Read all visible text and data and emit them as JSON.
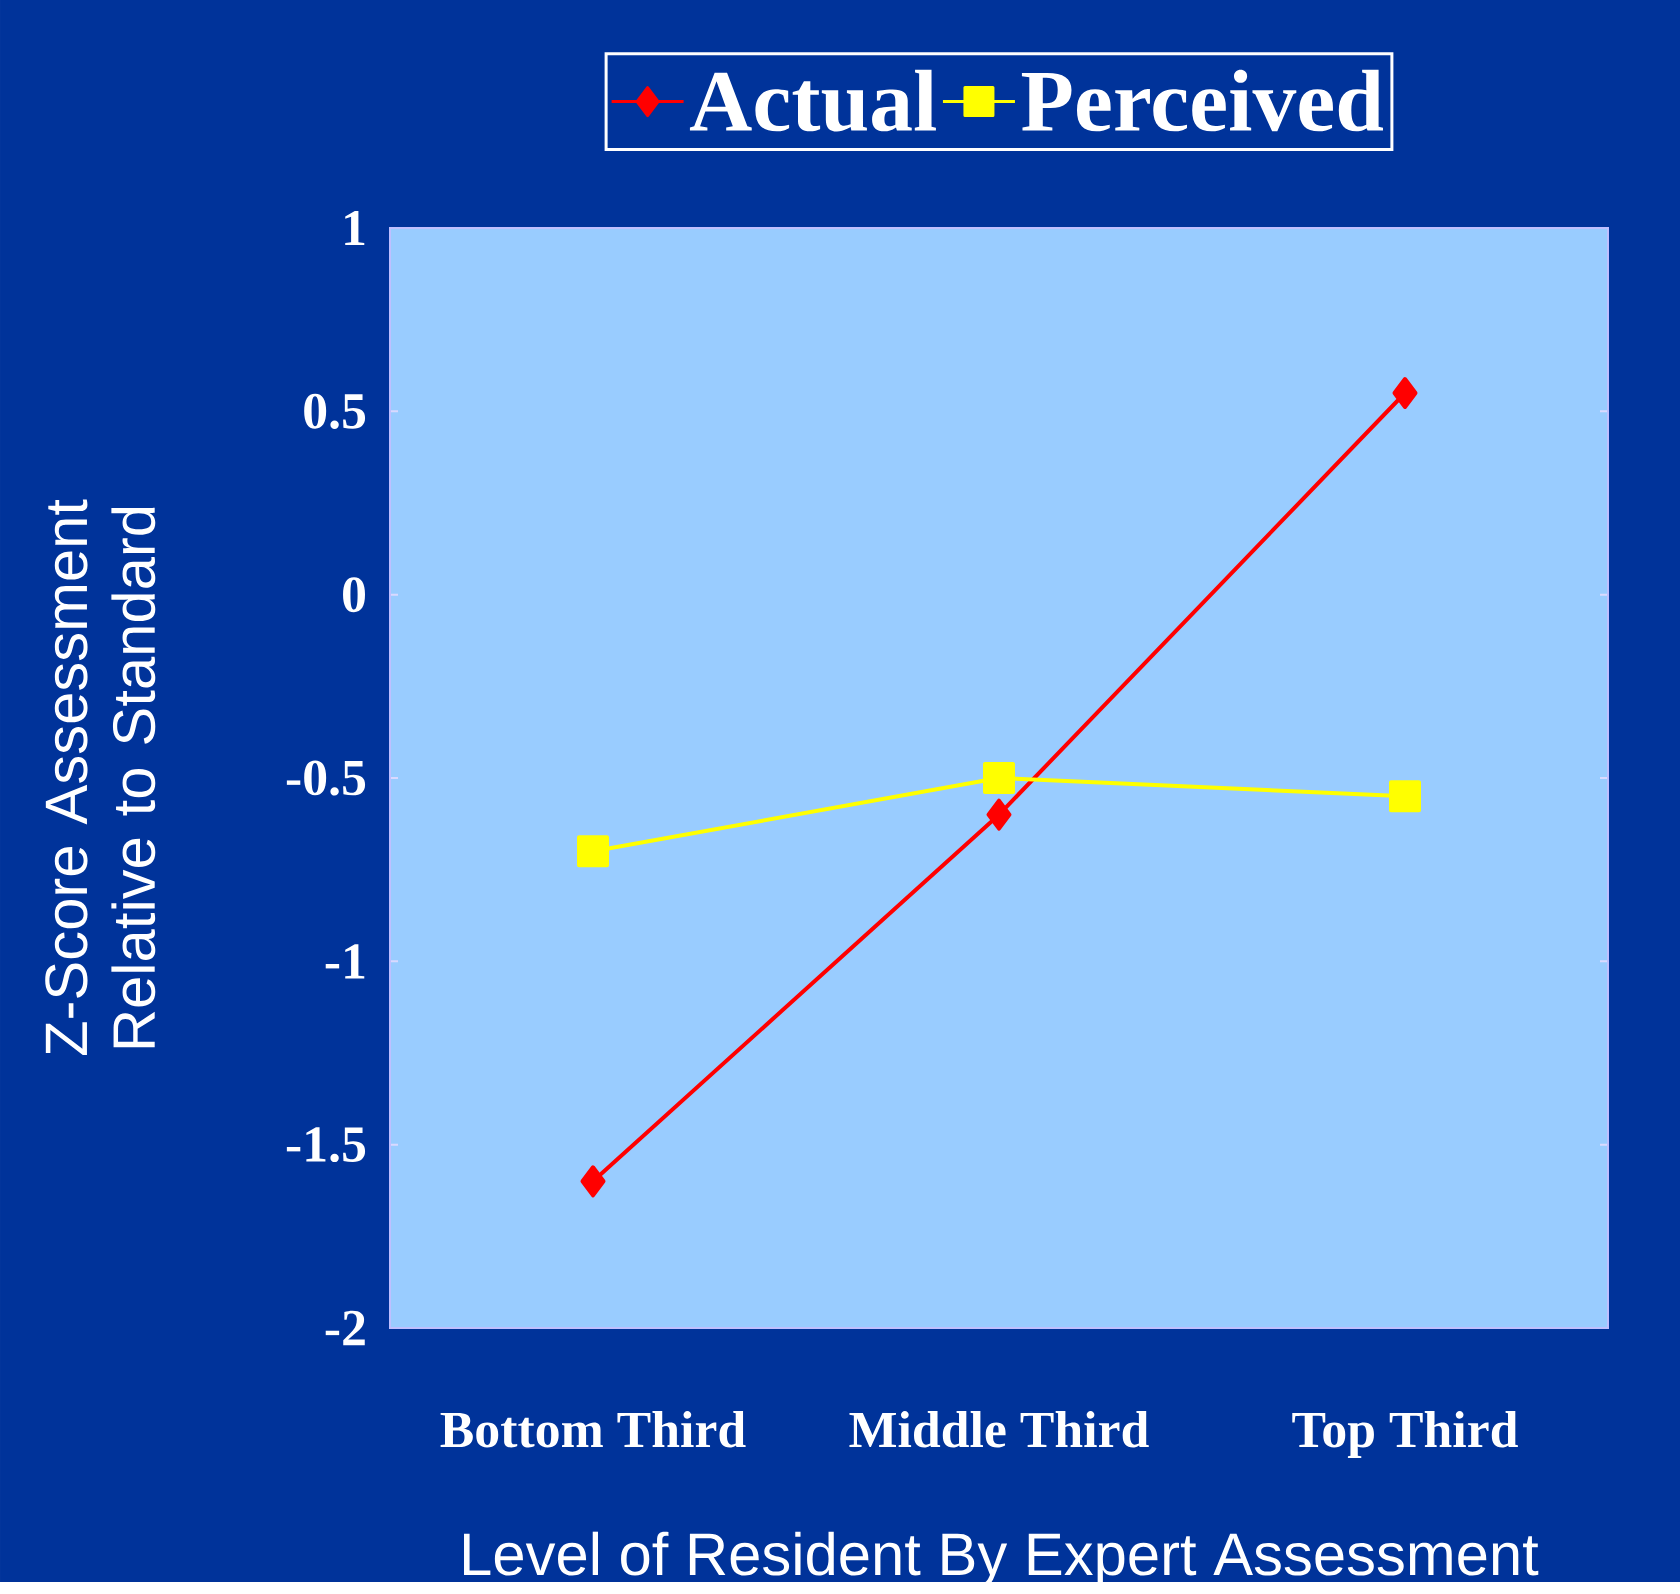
{
  "chart_data": {
    "type": "line",
    "xlabel": "Level of Resident By Expert Assessment",
    "ylabel": "Z-Score Assessment Relative to Standard",
    "categories": [
      "Bottom Third",
      "Middle Third",
      "Top Third"
    ],
    "series": [
      {
        "name": "Actual",
        "color": "#ff0000",
        "marker": "diamond",
        "values": [
          -1.6,
          -0.6,
          0.55
        ]
      },
      {
        "name": "Perceived",
        "color": "#ffff00",
        "marker": "square",
        "values": [
          -0.7,
          -0.5,
          -0.55
        ]
      }
    ],
    "ylim": [
      -2,
      1
    ],
    "yticks": [
      -2,
      -1.5,
      -1,
      -0.5,
      0,
      0.5,
      1
    ],
    "grid": false,
    "legend": "top",
    "line_style": "solid"
  }
}
